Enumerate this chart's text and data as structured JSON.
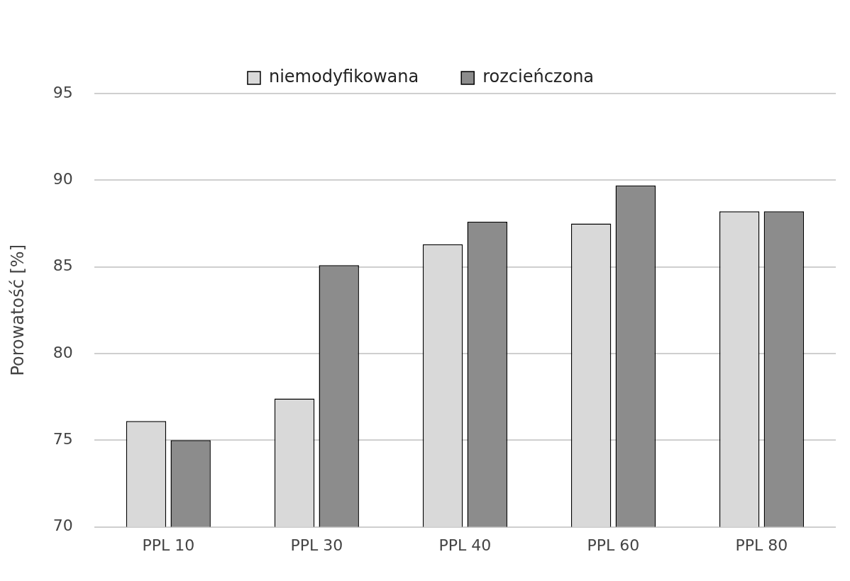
{
  "chart_data": {
    "type": "bar",
    "ylabel": "Porowatość [%]",
    "categories": [
      "PPL 10",
      "PPL 30",
      "PPL 40",
      "PPL 60",
      "PPL 80"
    ],
    "series": [
      {
        "name": "niemodyfikowana",
        "color": "#d9d9d9",
        "values": [
          76.1,
          77.4,
          86.3,
          87.5,
          88.2
        ]
      },
      {
        "name": "rozcieńczona",
        "color": "#8c8c8c",
        "values": [
          75.0,
          85.1,
          87.6,
          89.7,
          88.2
        ]
      }
    ],
    "ylim": [
      70,
      95
    ],
    "yticks": [
      70,
      75,
      80,
      85,
      90,
      95
    ],
    "grid": "y",
    "legend": "top"
  }
}
